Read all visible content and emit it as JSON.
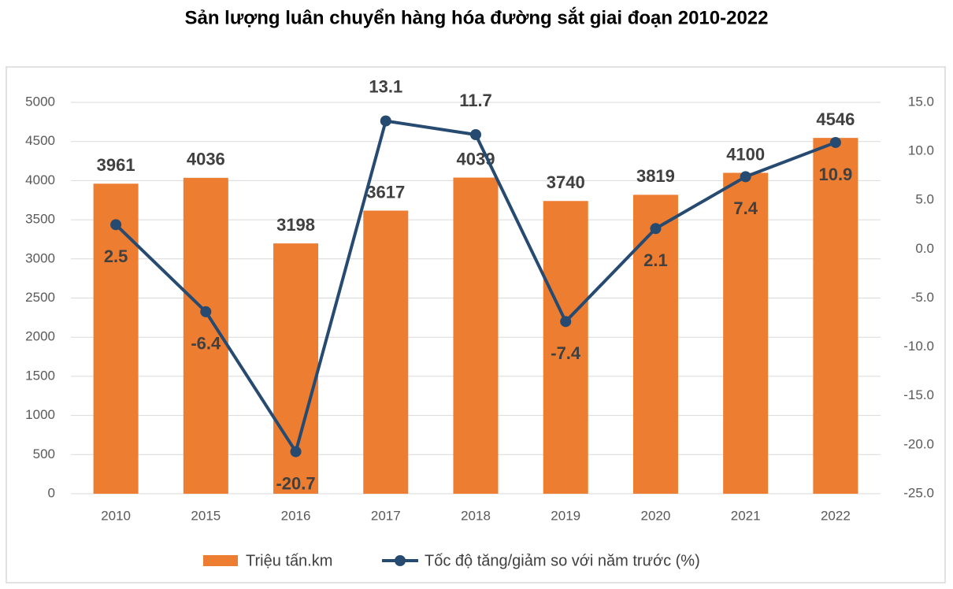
{
  "chart_data": {
    "type": "combo",
    "title": "Sản lượng luân chuyển hàng hóa đường sắt giai đoạn 2010-2022",
    "categories": [
      "2010",
      "2015",
      "2016",
      "2017",
      "2018",
      "2019",
      "2020",
      "2021",
      "2022"
    ],
    "series": [
      {
        "name": "Triệu tấn.km",
        "type": "bar",
        "color": "#ed7d31",
        "values": [
          3961,
          4036,
          3198,
          3617,
          4039,
          3740,
          3819,
          4100,
          4546
        ]
      },
      {
        "name": "Tốc độ tăng/giảm so với năm trước (%)",
        "type": "line",
        "axis": "y2",
        "color": "#264a70",
        "values": [
          2.5,
          -6.4,
          -20.7,
          13.1,
          11.7,
          -7.4,
          2.1,
          7.4,
          10.9
        ]
      }
    ],
    "ylim": [
      0,
      5000
    ],
    "yticks": [
      0,
      500,
      1000,
      1500,
      2000,
      2500,
      3000,
      3500,
      4000,
      4500,
      5000
    ],
    "y2lim": [
      -25,
      15
    ],
    "y2ticks": [
      {
        "value": -25,
        "label": "-25.0"
      },
      {
        "value": -20,
        "label": "-20.0"
      },
      {
        "value": -15,
        "label": "-15.0"
      },
      {
        "value": -10,
        "label": "-10.0"
      },
      {
        "value": -5,
        "label": "-5.0"
      },
      {
        "value": 0,
        "label": "0.0"
      },
      {
        "value": 5,
        "label": "5.0"
      },
      {
        "value": 10,
        "label": "10.0"
      },
      {
        "value": 15,
        "label": "15.0"
      }
    ],
    "grid": true,
    "legend": "bottom"
  }
}
